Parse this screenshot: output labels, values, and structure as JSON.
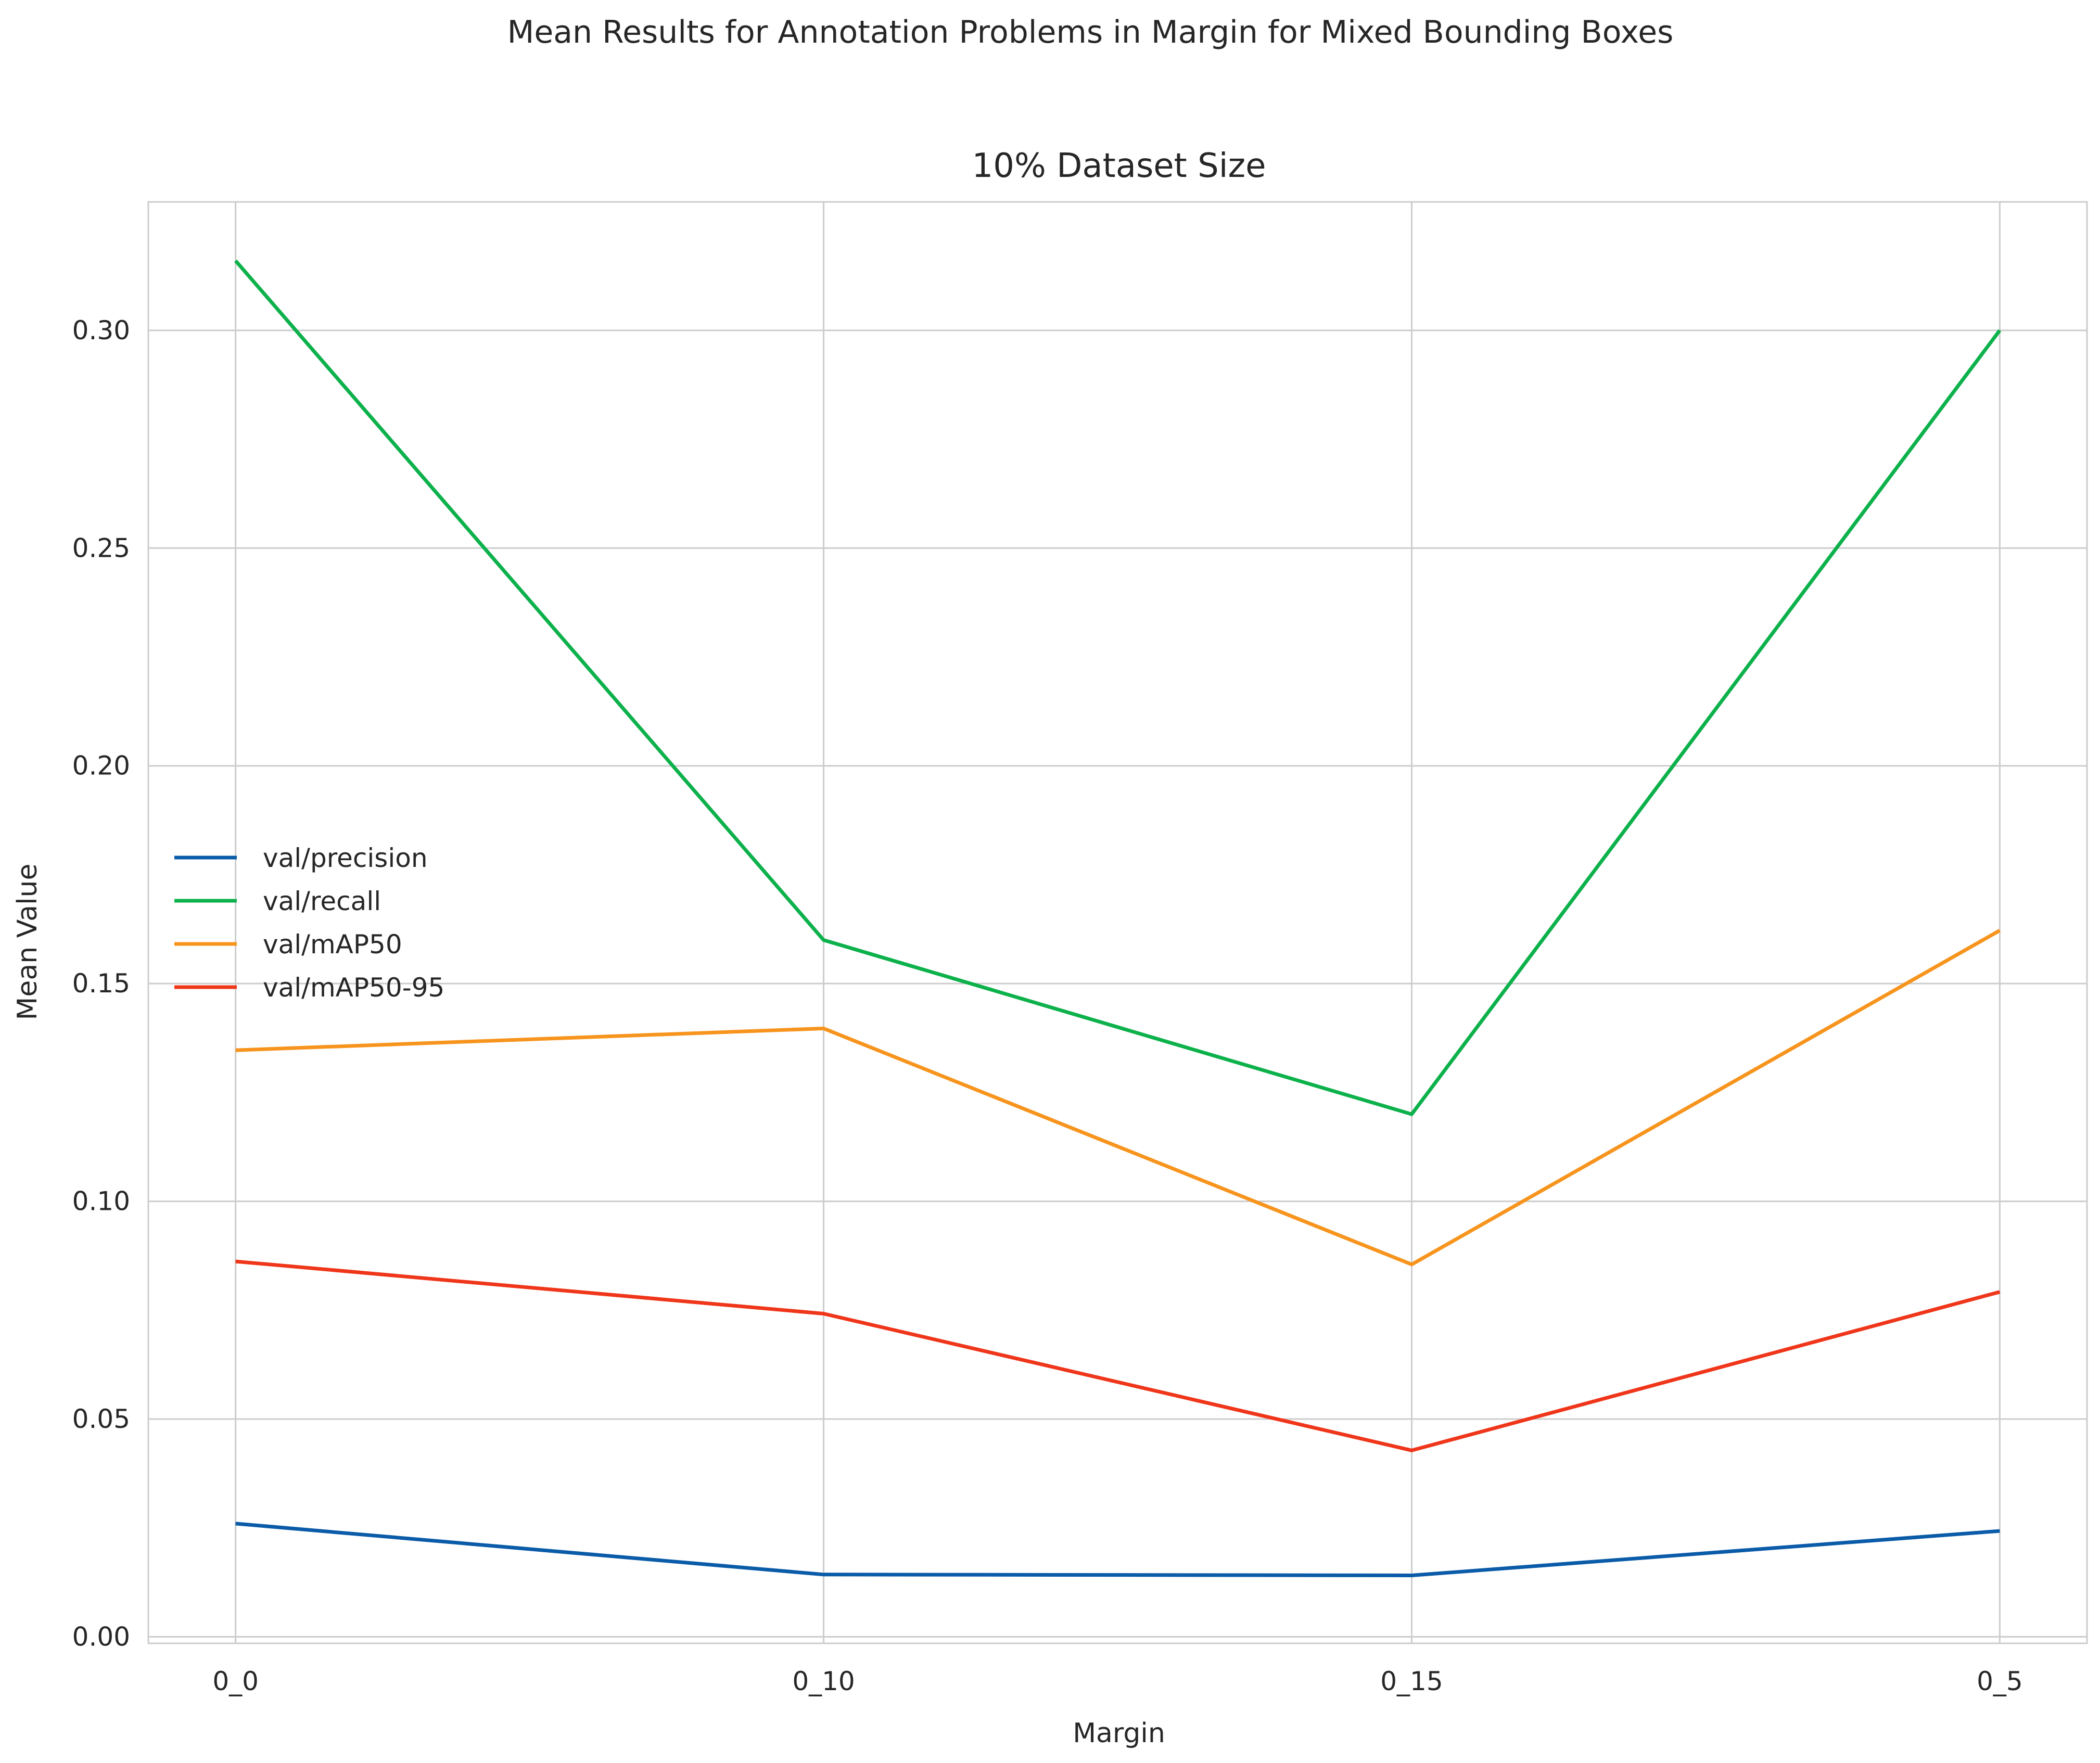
{
  "chart_data": {
    "type": "line",
    "title": "Mean Results for Annotation Problems in Margin for Mixed Bounding Boxes",
    "subtitle": "10% Dataset Size",
    "xlabel": "Margin",
    "ylabel": "Mean Value",
    "categories": [
      "0_0",
      "0_10",
      "0_15",
      "0_5"
    ],
    "ylim": [
      -0.0015,
      0.3295
    ],
    "yticks": [
      0.0,
      0.05,
      0.1,
      0.15,
      0.2,
      0.25,
      0.3
    ],
    "ytick_labels": [
      "0.00",
      "0.05",
      "0.10",
      "0.15",
      "0.20",
      "0.25",
      "0.30"
    ],
    "grid": true,
    "legend_position": "center-left",
    "series": [
      {
        "name": "val/precision",
        "color": "#0a5ba8",
        "values": [
          0.026,
          0.0143,
          0.0141,
          0.0243
        ]
      },
      {
        "name": "val/recall",
        "color": "#0db14b",
        "values": [
          0.316,
          0.16,
          0.12,
          0.3
        ]
      },
      {
        "name": "val/mAP50",
        "color": "#f7941d",
        "values": [
          0.1347,
          0.1397,
          0.0855,
          0.1622
        ]
      },
      {
        "name": "val/mAP50-95",
        "color": "#f0361a",
        "values": [
          0.0862,
          0.0742,
          0.0428,
          0.0792
        ]
      }
    ]
  }
}
